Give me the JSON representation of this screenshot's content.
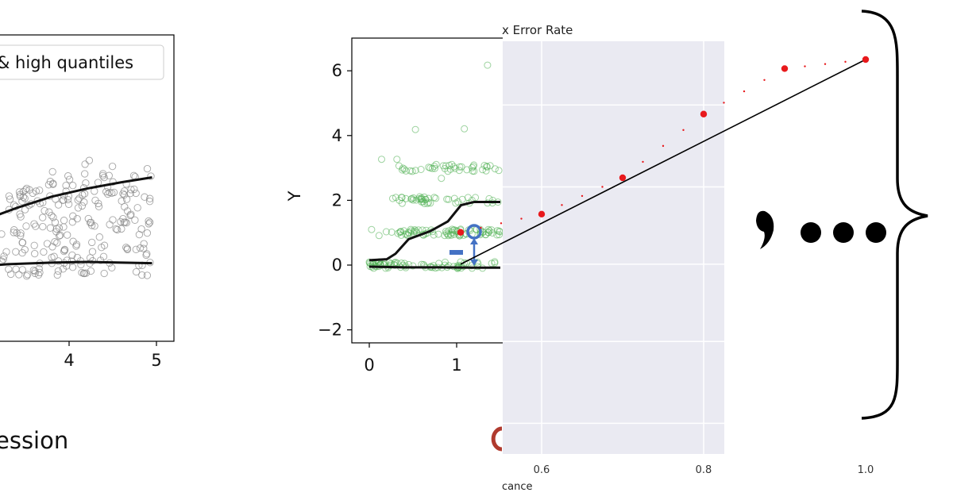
{
  "panel1": {
    "legend_text": "& high quantiles",
    "caption": "ession",
    "chart_data": {
      "type": "scatter",
      "title": "",
      "xlabel": "",
      "ylabel": "",
      "xlim": [
        2.3,
        5.2
      ],
      "ylim": [
        -1.5,
        6.2
      ],
      "xticks": [
        4,
        5
      ],
      "legend": "top-right",
      "grid": false,
      "scatter_color": "#888888",
      "series": [
        {
          "name": "& high quantiles",
          "x": [
            2.3,
            2.6,
            3.0,
            3.4,
            3.8,
            4.2,
            4.6,
            4.95
          ],
          "y": [
            1.15,
            1.25,
            1.6,
            2.0,
            2.35,
            2.6,
            2.8,
            2.95
          ]
        },
        {
          "x": [
            2.3,
            2.8,
            3.3,
            3.8,
            4.2,
            4.6,
            4.95
          ],
          "y": [
            0.1,
            0.15,
            0.25,
            0.3,
            0.32,
            0.3,
            0.28
          ]
        }
      ]
    }
  },
  "panel2": {
    "minus_label": "–",
    "chart_data": {
      "type": "scatter",
      "title": "",
      "xlabel": "",
      "ylabel": "Y",
      "xlim": [
        -0.2,
        1.6
      ],
      "ylim": [
        -2.5,
        7
      ],
      "yticks": [
        6,
        4,
        2,
        0,
        -2
      ],
      "ytick_labels": [
        "6",
        "4",
        "2",
        "0",
        "−2"
      ],
      "xticks": [
        0,
        1
      ],
      "grid": false,
      "scatter_color": "#4caf50",
      "series": [
        {
          "x": [
            0.0,
            0.2,
            0.3,
            0.45,
            0.7,
            0.9,
            1.05,
            1.2,
            1.5
          ],
          "y": [
            0.15,
            0.18,
            0.35,
            0.8,
            1.05,
            1.35,
            1.85,
            1.95,
            1.95
          ]
        },
        {
          "x": [
            0.0,
            0.4,
            0.8,
            1.2,
            1.5
          ],
          "y": [
            -0.05,
            -0.07,
            -0.07,
            -0.08,
            -0.08
          ]
        }
      ]
    }
  },
  "panel3": {
    "chart_data": {
      "type": "line",
      "title": "x Error Rate",
      "xlabel": "cance",
      "ylabel": "",
      "xlim": [
        0.5,
        1.05
      ],
      "ylim": [
        0.0,
        1.1
      ],
      "xticks": [
        0.6,
        0.8,
        1.0
      ],
      "xtick_labels": [
        "0.6",
        "0.8",
        "1.0"
      ],
      "grid": true,
      "background": "#eaeaf2",
      "point_color": "#e8191c",
      "series": [
        {
          "x": [
            0.5,
            1.0
          ],
          "y": [
            0.55,
            1.0
          ]
        },
        {
          "x": [
            0.5,
            0.6,
            0.7,
            0.8,
            0.9,
            1.0
          ],
          "y": [
            0.62,
            0.66,
            0.74,
            0.88,
            0.98,
            1.0
          ]
        }
      ]
    }
  },
  "panel4": {
    "glyph_text": ",•••"
  }
}
